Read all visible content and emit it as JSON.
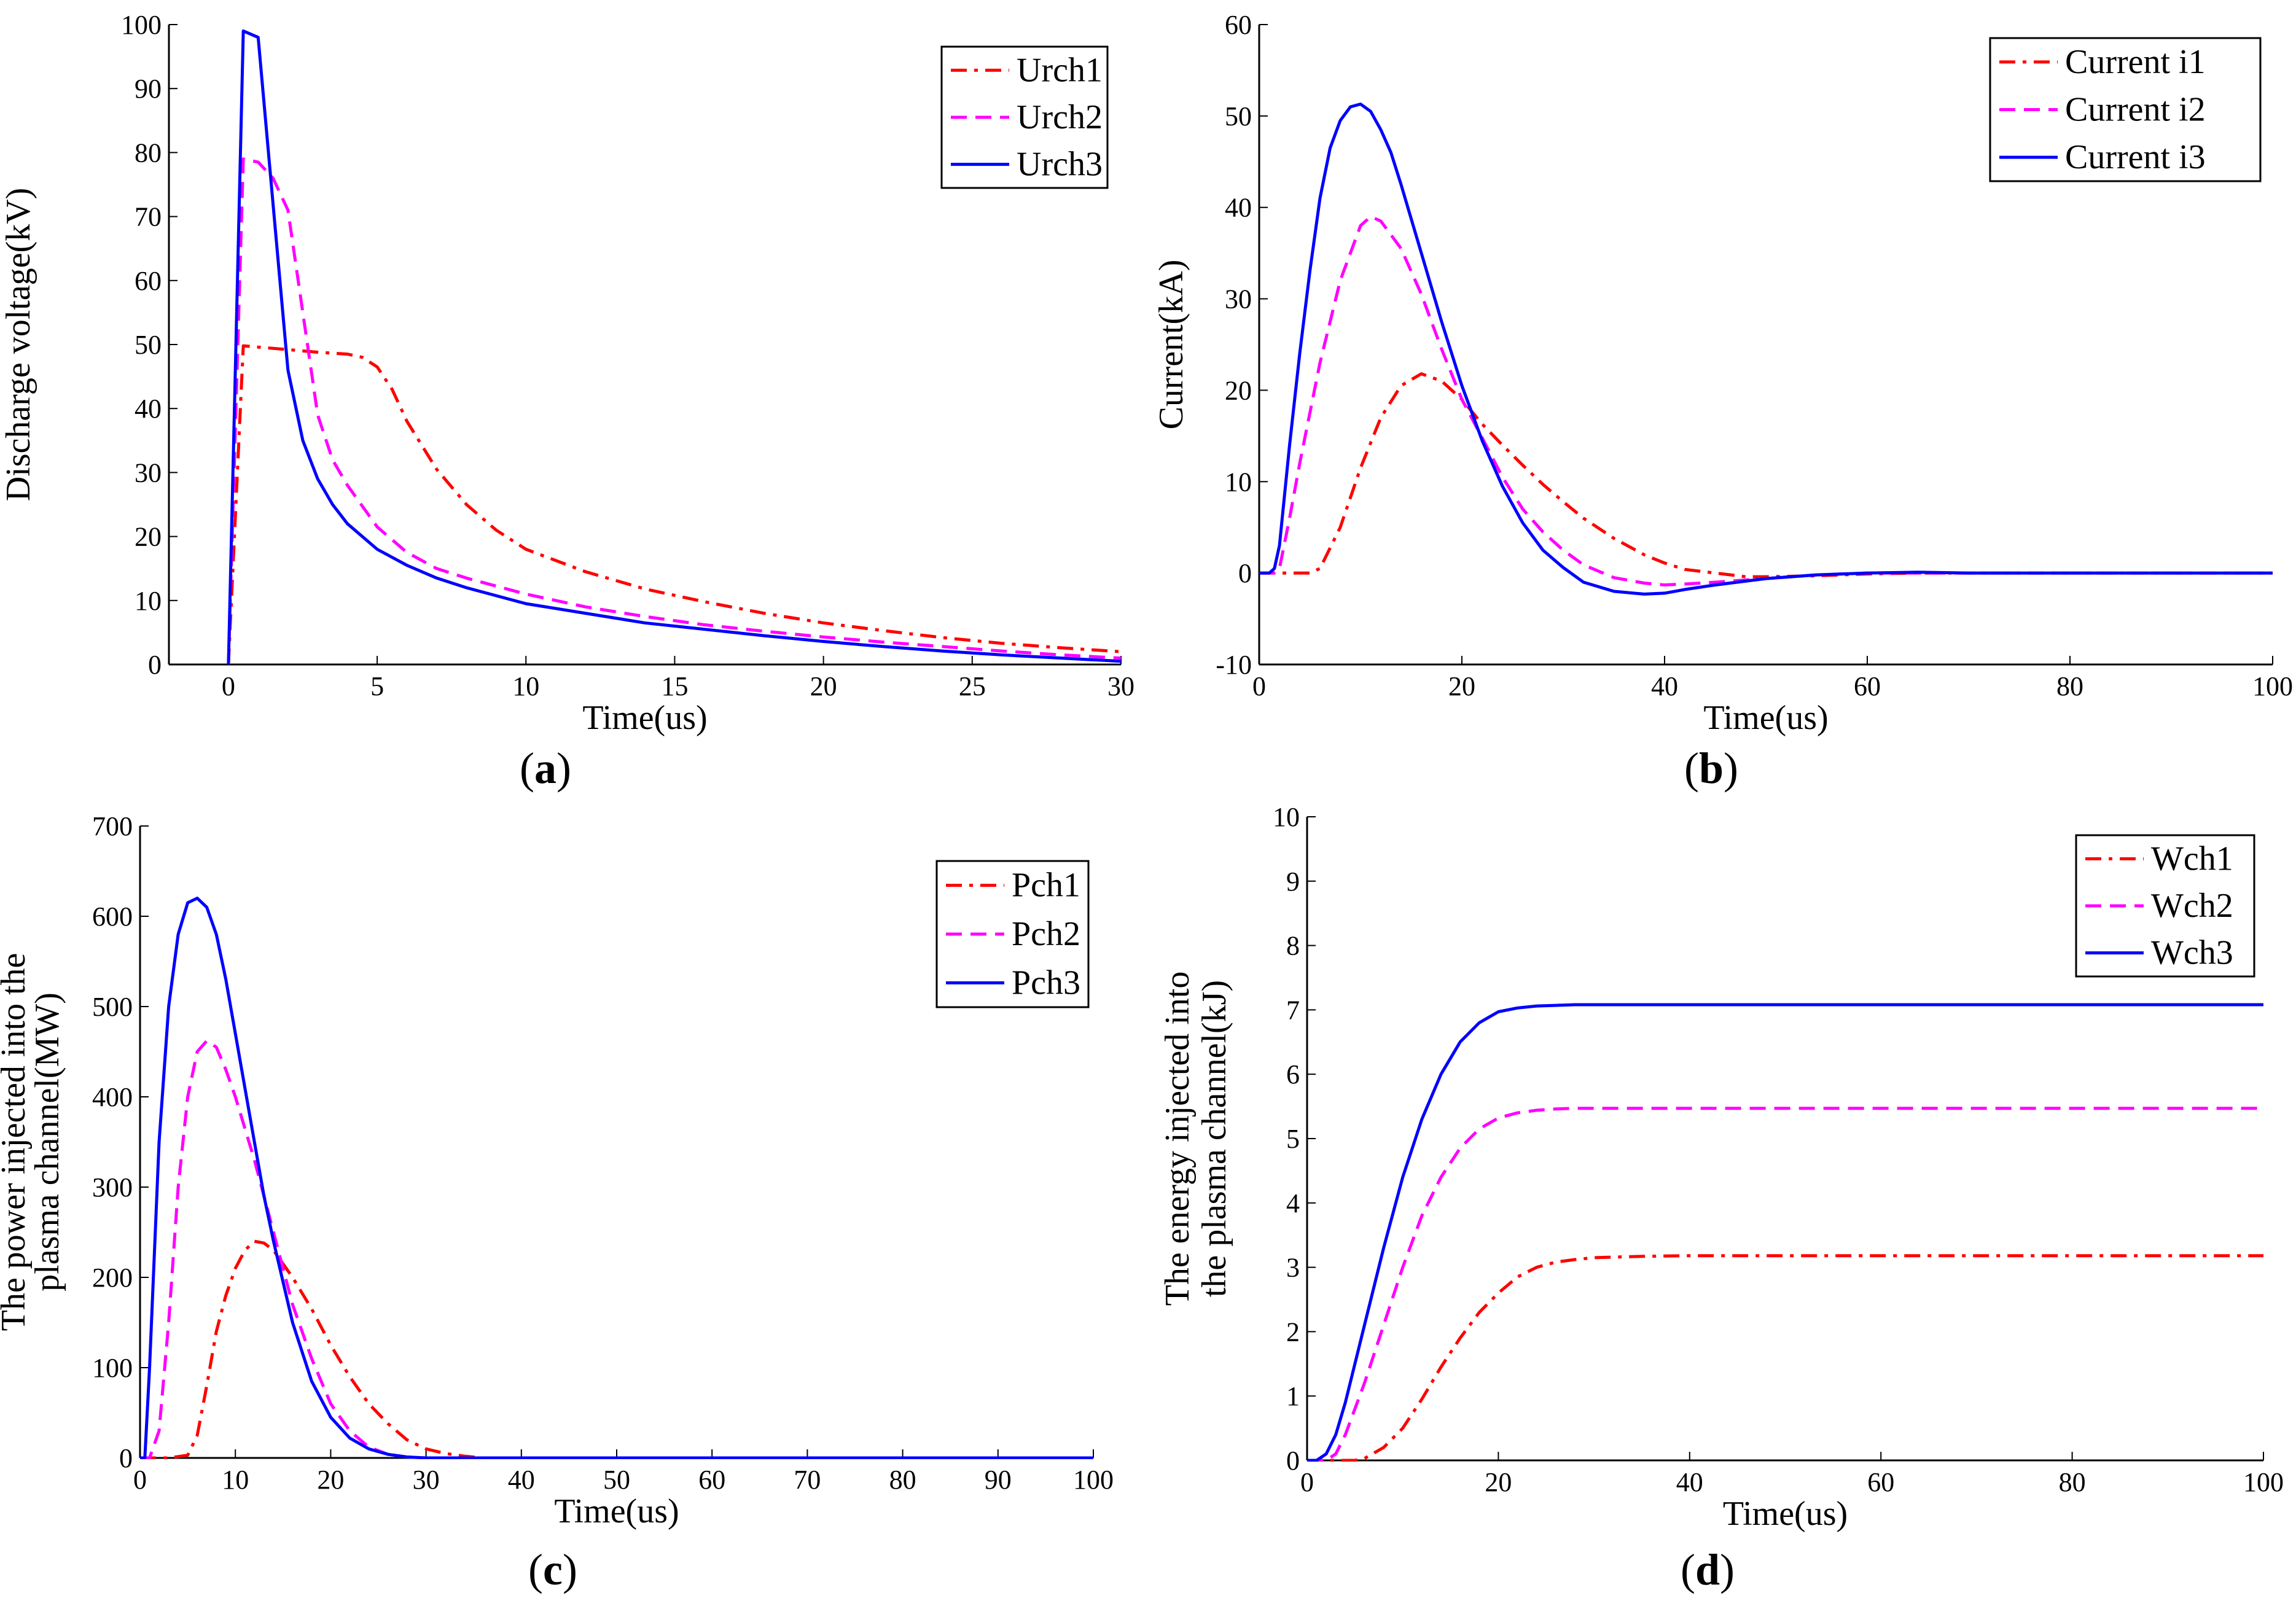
{
  "chart_data": [
    {
      "id": "a",
      "type": "line",
      "caption": "a",
      "xlabel": "Time(us)",
      "ylabel": "Discharge voltage(kV)",
      "xlim": [
        -2,
        30
      ],
      "ylim": [
        0,
        100
      ],
      "xticks": [
        0,
        5,
        10,
        15,
        20,
        25,
        30
      ],
      "xtick_labels": [
        "0",
        "5",
        "10",
        "15",
        "20",
        "25",
        "30"
      ],
      "yticks": [
        0,
        10,
        20,
        30,
        40,
        50,
        60,
        70,
        80,
        90,
        100
      ],
      "ytick_labels": [
        "0",
        "10",
        "20",
        "30",
        "40",
        "50",
        "60",
        "70",
        "80",
        "90",
        "100"
      ],
      "legend_position": "top-right",
      "series": [
        {
          "name": "Urch1",
          "style": "dashdot",
          "color": "#ff0000",
          "x": [
            0,
            0.5,
            1,
            2,
            3,
            4,
            4.5,
            5,
            5.5,
            6,
            7,
            8,
            9,
            10,
            12,
            14,
            16,
            18,
            20,
            22,
            24,
            26,
            28,
            30
          ],
          "y": [
            0,
            49.8,
            49.6,
            49.2,
            48.8,
            48.5,
            48,
            46.5,
            43,
            38,
            30.5,
            25,
            21,
            18,
            14.5,
            11.8,
            9.8,
            8,
            6.5,
            5.3,
            4.2,
            3.3,
            2.6,
            2
          ]
        },
        {
          "name": "Urch2",
          "style": "dashed",
          "color": "#ff00ff",
          "x": [
            0,
            0.5,
            1,
            1.5,
            2,
            2.5,
            3,
            3.5,
            4,
            5,
            6,
            7,
            8,
            10,
            12,
            14,
            16,
            18,
            20,
            22,
            24,
            26,
            28,
            30
          ],
          "y": [
            0,
            79,
            78.5,
            76,
            71,
            55,
            39,
            32,
            28,
            21.5,
            17.5,
            15,
            13.5,
            11,
            9,
            7.5,
            6.2,
            5.2,
            4.3,
            3.5,
            2.8,
            2.1,
            1.5,
            1
          ]
        },
        {
          "name": "Urch3",
          "style": "solid",
          "color": "#0000ff",
          "x": [
            0,
            0.5,
            1,
            1.5,
            2,
            2.5,
            3,
            3.5,
            4,
            5,
            6,
            7,
            8,
            10,
            12,
            14,
            16,
            18,
            20,
            22,
            24,
            26,
            28,
            30
          ],
          "y": [
            0,
            99,
            98,
            72,
            46,
            35,
            29,
            25,
            22,
            18,
            15.5,
            13.5,
            12,
            9.5,
            8,
            6.5,
            5.5,
            4.5,
            3.6,
            2.8,
            2.1,
            1.5,
            1,
            0.5
          ]
        }
      ]
    },
    {
      "id": "b",
      "type": "line",
      "caption": "b",
      "xlabel": "Time(us)",
      "ylabel": "Current(kA)",
      "xlim": [
        0,
        100
      ],
      "ylim": [
        -10,
        60
      ],
      "xticks": [
        0,
        20,
        40,
        60,
        80,
        100
      ],
      "xtick_labels": [
        "0",
        "20",
        "40",
        "60",
        "80",
        "100"
      ],
      "yticks": [
        -10,
        0,
        10,
        20,
        30,
        40,
        50,
        60
      ],
      "ytick_labels": [
        "-10",
        "0",
        "10",
        "20",
        "30",
        "40",
        "50",
        "60"
      ],
      "legend_position": "top-right",
      "series": [
        {
          "name": "Current i1",
          "style": "dashdot",
          "color": "#ff0000",
          "x": [
            0,
            3,
            5,
            6,
            8,
            10,
            12,
            14,
            16,
            18,
            20,
            22,
            24,
            26,
            28,
            30,
            32,
            35,
            38,
            40,
            42,
            45,
            48,
            50,
            55,
            60,
            65,
            70,
            100
          ],
          "y": [
            0,
            0,
            0,
            0.5,
            5,
            11.5,
            17,
            20.5,
            21.8,
            21,
            19,
            16.3,
            14,
            11.8,
            9.7,
            7.8,
            6,
            3.8,
            2,
            1.1,
            0.4,
            0,
            -0.4,
            -0.4,
            -0.3,
            -0.1,
            0,
            0,
            0
          ]
        },
        {
          "name": "Current i2",
          "style": "dashed",
          "color": "#ff00ff",
          "x": [
            0,
            1.5,
            2,
            3,
            4,
            6,
            8,
            10,
            11,
            12,
            14,
            16,
            18,
            20,
            22,
            24,
            26,
            28,
            30,
            32,
            35,
            38,
            40,
            42,
            45,
            50,
            55,
            60,
            65,
            70,
            100
          ],
          "y": [
            0,
            0,
            0.5,
            6,
            12,
            23,
            32,
            38,
            39,
            38.5,
            35.5,
            30.5,
            24.5,
            19,
            14.8,
            10.5,
            7,
            4.5,
            2.5,
            0.9,
            -0.5,
            -1.1,
            -1.3,
            -1.2,
            -1,
            -0.6,
            -0.2,
            0,
            0,
            0,
            0
          ]
        },
        {
          "name": "Current i3",
          "style": "solid",
          "color": "#0000ff",
          "x": [
            0,
            1,
            1.5,
            2,
            3,
            4,
            5,
            6,
            7,
            8,
            9,
            10,
            11,
            12,
            13,
            14,
            16,
            18,
            20,
            22,
            24,
            26,
            28,
            30,
            32,
            35,
            38,
            40,
            42,
            45,
            50,
            55,
            60,
            65,
            70,
            100
          ],
          "y": [
            0,
            0,
            0.5,
            3,
            14,
            24,
            33,
            41,
            46.5,
            49.5,
            51,
            51.3,
            50.5,
            48.5,
            46,
            42.5,
            35,
            27.5,
            20.5,
            14.5,
            9.5,
            5.5,
            2.5,
            0.6,
            -1,
            -2,
            -2.3,
            -2.2,
            -1.8,
            -1.3,
            -0.6,
            -0.2,
            0,
            0.1,
            0,
            0
          ]
        }
      ]
    },
    {
      "id": "c",
      "type": "line",
      "caption": "c",
      "xlabel": "Time(us)",
      "ylabel_lines": [
        "The power injected into the",
        "plasma channel(MW)"
      ],
      "xlim": [
        0,
        100
      ],
      "ylim": [
        0,
        700
      ],
      "xticks": [
        0,
        10,
        20,
        30,
        40,
        50,
        60,
        70,
        80,
        90,
        100
      ],
      "xtick_labels": [
        "0",
        "10",
        "20",
        "30",
        "40",
        "50",
        "60",
        "70",
        "80",
        "90",
        "100"
      ],
      "yticks": [
        0,
        100,
        200,
        300,
        400,
        500,
        600,
        700
      ],
      "ytick_labels": [
        "0",
        "100",
        "200",
        "300",
        "400",
        "500",
        "600",
        "700"
      ],
      "legend_position": "top-right",
      "series": [
        {
          "name": "Pch1",
          "style": "dashdot",
          "color": "#ff0000",
          "x": [
            0,
            3,
            5,
            6,
            7,
            8,
            9,
            10,
            11,
            12,
            13,
            14,
            15,
            16,
            18,
            20,
            22,
            24,
            26,
            28,
            30,
            32,
            34,
            36,
            40,
            100
          ],
          "y": [
            0,
            0,
            3,
            25,
            80,
            140,
            180,
            210,
            230,
            240,
            238,
            230,
            215,
            200,
            165,
            125,
            90,
            60,
            38,
            20,
            10,
            5,
            2,
            0,
            0,
            0
          ]
        },
        {
          "name": "Pch2",
          "style": "dashed",
          "color": "#ff00ff",
          "x": [
            0,
            1,
            2,
            3,
            4,
            5,
            6,
            7,
            8,
            9,
            10,
            11,
            12,
            13,
            14,
            15,
            16,
            18,
            20,
            22,
            24,
            26,
            28,
            30,
            100
          ],
          "y": [
            0,
            0,
            30,
            150,
            300,
            400,
            450,
            462,
            455,
            430,
            400,
            365,
            330,
            290,
            250,
            210,
            170,
            110,
            60,
            30,
            12,
            4,
            1,
            0,
            0
          ]
        },
        {
          "name": "Pch3",
          "style": "solid",
          "color": "#0000ff",
          "x": [
            0,
            0.5,
            1,
            2,
            3,
            4,
            5,
            6,
            7,
            8,
            9,
            10,
            11,
            12,
            13,
            14,
            16,
            18,
            20,
            22,
            24,
            26,
            28,
            30,
            100
          ],
          "y": [
            0,
            0,
            100,
            350,
            500,
            580,
            615,
            620,
            610,
            580,
            530,
            470,
            410,
            350,
            290,
            240,
            150,
            85,
            45,
            22,
            10,
            4,
            1,
            0,
            0
          ]
        }
      ]
    },
    {
      "id": "d",
      "type": "line",
      "caption": "d",
      "xlabel": "Time(us)",
      "ylabel_lines": [
        "The energy injected into",
        "the plasma channel(kJ)"
      ],
      "xlim": [
        0,
        100
      ],
      "ylim": [
        0,
        10
      ],
      "xticks": [
        0,
        20,
        40,
        60,
        80,
        100
      ],
      "xtick_labels": [
        "0",
        "20",
        "40",
        "60",
        "80",
        "100"
      ],
      "yticks": [
        0,
        1,
        2,
        3,
        4,
        5,
        6,
        7,
        8,
        9,
        10
      ],
      "ytick_labels": [
        "0",
        "1",
        "2",
        "3",
        "4",
        "5",
        "6",
        "7",
        "8",
        "9",
        "10"
      ],
      "legend_position": "top-right",
      "series": [
        {
          "name": "Wch1",
          "style": "dashdot",
          "color": "#ff0000",
          "x": [
            0,
            5,
            6,
            8,
            10,
            12,
            14,
            16,
            18,
            20,
            22,
            24,
            26,
            28,
            30,
            35,
            40,
            100
          ],
          "y": [
            0,
            0,
            0.03,
            0.2,
            0.5,
            0.95,
            1.45,
            1.9,
            2.3,
            2.6,
            2.85,
            3.0,
            3.08,
            3.12,
            3.15,
            3.17,
            3.18,
            3.18
          ]
        },
        {
          "name": "Wch2",
          "style": "dashed",
          "color": "#ff00ff",
          "x": [
            0,
            2,
            3,
            4,
            6,
            8,
            10,
            12,
            14,
            16,
            18,
            20,
            22,
            24,
            26,
            28,
            30,
            35,
            100
          ],
          "y": [
            0,
            0,
            0.1,
            0.4,
            1.2,
            2.1,
            3.0,
            3.8,
            4.4,
            4.85,
            5.15,
            5.32,
            5.4,
            5.44,
            5.46,
            5.47,
            5.47,
            5.47,
            5.47
          ]
        },
        {
          "name": "Wch3",
          "style": "solid",
          "color": "#0000ff",
          "x": [
            0,
            1,
            2,
            3,
            4,
            6,
            8,
            10,
            12,
            14,
            16,
            18,
            20,
            22,
            24,
            26,
            28,
            30,
            100
          ],
          "y": [
            0,
            0,
            0.1,
            0.4,
            0.9,
            2.1,
            3.3,
            4.4,
            5.3,
            6.0,
            6.5,
            6.8,
            6.97,
            7.03,
            7.06,
            7.07,
            7.08,
            7.08,
            7.08
          ]
        }
      ]
    }
  ]
}
